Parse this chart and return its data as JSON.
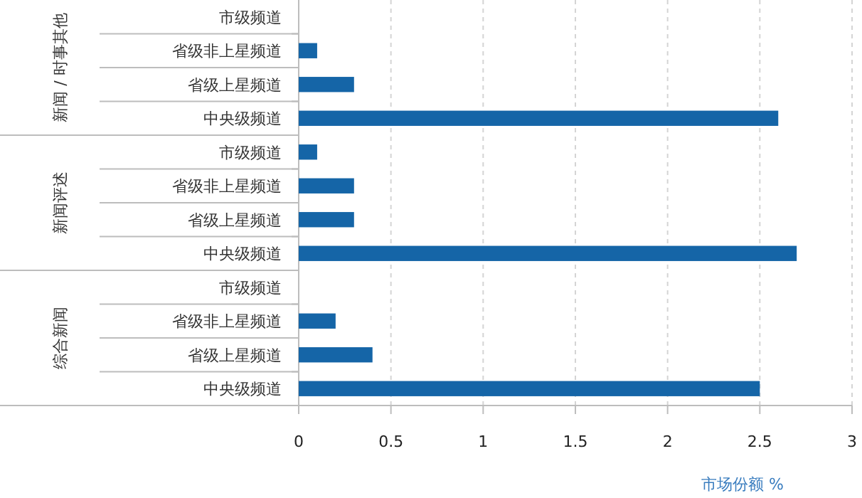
{
  "chart_data": {
    "type": "bar",
    "orientation": "horizontal",
    "xlabel": "市场份额 %",
    "categories": [
      "市级频道",
      "省级非上星频道",
      "省级上星频道",
      "中央级频道",
      "市级频道",
      "省级非上星频道",
      "省级上星频道",
      "中央级频道",
      "市级频道",
      "省级非上星频道",
      "省级上星频道",
      "中央级频道"
    ],
    "values": [
      null,
      0.1,
      0.3,
      2.6,
      0.1,
      0.3,
      0.3,
      2.7,
      null,
      0.2,
      0.4,
      2.5
    ],
    "color": "#1565a7",
    "annotations": [
      "新闻 / 时事其他",
      "新闻评述",
      "综合新闻"
    ],
    "xlim": [
      0,
      3
    ],
    "xticks": [
      0,
      0.5,
      1,
      1.5,
      2,
      2.5,
      3
    ],
    "grid": "x"
  }
}
